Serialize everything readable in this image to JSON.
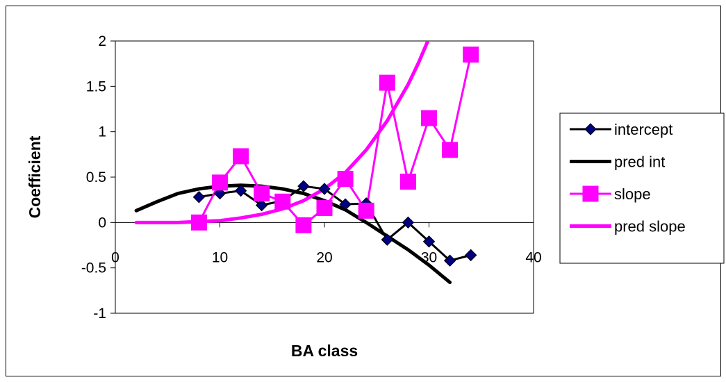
{
  "chart_data": {
    "type": "line",
    "title": "",
    "xlabel": "BA class",
    "ylabel": "Coefficient",
    "xlim": [
      0,
      40
    ],
    "ylim": [
      -1,
      2
    ],
    "x_ticks": [
      "0",
      "10",
      "20",
      "30",
      "40"
    ],
    "y_ticks": [
      "-1",
      "-0.5",
      "0",
      "0.5",
      "1",
      "1.5",
      "2"
    ],
    "grid": false,
    "legend_position": "right",
    "series": [
      {
        "name": "intercept",
        "style": "line-markers",
        "marker": "diamond",
        "color": "#000000",
        "marker_color": "#000080",
        "x": [
          8,
          10,
          12,
          14,
          16,
          18,
          20,
          22,
          24,
          26,
          28,
          30,
          32,
          34
        ],
        "y": [
          0.28,
          0.32,
          0.35,
          0.19,
          0.24,
          0.4,
          0.37,
          0.2,
          0.21,
          -0.19,
          0.0,
          -0.21,
          -0.42,
          -0.36
        ]
      },
      {
        "name": "pred int",
        "style": "line",
        "color": "#000000",
        "x": [
          2,
          4,
          6,
          8,
          10,
          12,
          14,
          16,
          18,
          20,
          22,
          24,
          26,
          28,
          30,
          32
        ],
        "y": [
          0.13,
          0.23,
          0.32,
          0.37,
          0.4,
          0.41,
          0.4,
          0.37,
          0.32,
          0.24,
          0.14,
          0.0,
          -0.15,
          -0.3,
          -0.47,
          -0.66
        ]
      },
      {
        "name": "slope",
        "style": "line-markers",
        "marker": "square",
        "color": "#ff00ff",
        "x": [
          8,
          10,
          12,
          14,
          16,
          18,
          20,
          22,
          24,
          26,
          28,
          30,
          32,
          34
        ],
        "y": [
          0.0,
          0.44,
          0.73,
          0.32,
          0.23,
          -0.03,
          0.16,
          0.48,
          0.13,
          1.54,
          0.45,
          1.15,
          0.8,
          1.85
        ]
      },
      {
        "name": "pred slope",
        "style": "line",
        "color": "#ff00ff",
        "x": [
          2,
          4,
          6,
          8,
          10,
          12,
          14,
          16,
          18,
          20,
          22,
          24,
          26,
          28,
          29,
          30,
          31
        ],
        "y": [
          0.0,
          0.0,
          0.0,
          0.01,
          0.02,
          0.05,
          0.09,
          0.15,
          0.24,
          0.37,
          0.55,
          0.8,
          1.12,
          1.52,
          1.76,
          2.03,
          2.28
        ]
      }
    ]
  }
}
